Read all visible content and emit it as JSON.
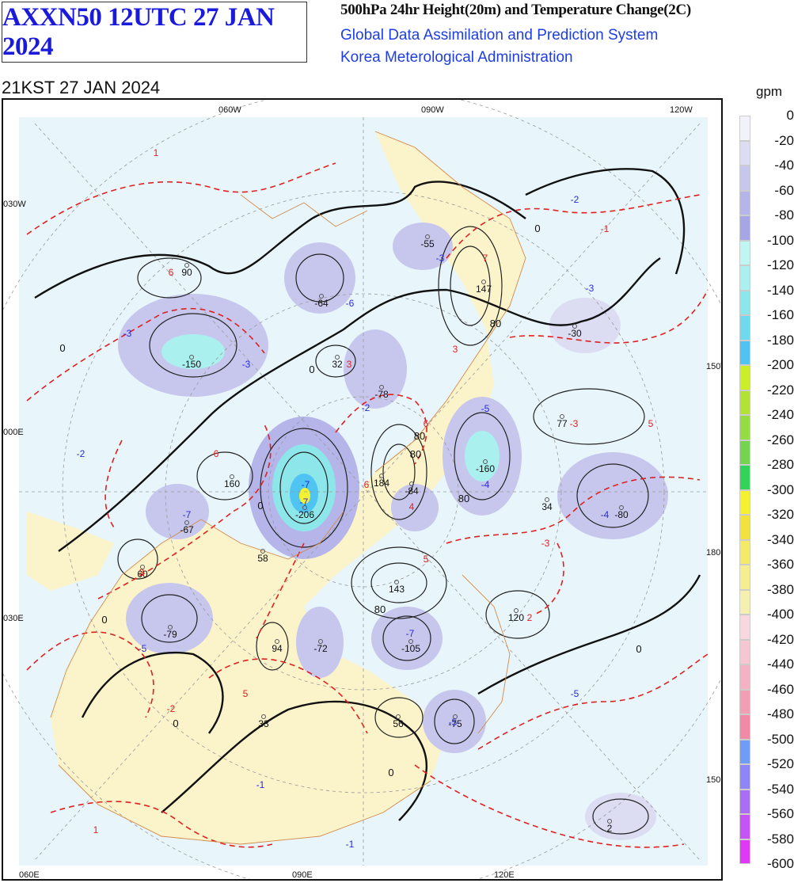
{
  "header": {
    "product_code": "AXXN50 12UTC 27 JAN 2024",
    "chart_title": "500hPa 24hr Height(20m) and Temperature Change(2C)",
    "system_name": "Global Data Assimilation and Prediction System",
    "agency": "Korea Meterological Administration",
    "valid_time": "21KST 27 JAN 2024"
  },
  "map": {
    "top_lon_labels": [
      "060W",
      "090W",
      "120W"
    ],
    "bottom_lon_labels": [
      "060E",
      "090E",
      "120E"
    ],
    "left_lon_labels": [
      "030W",
      "000E",
      "030E"
    ],
    "right_lon_labels": [
      "150W",
      "180E",
      "150E"
    ],
    "height_change_centers": [
      "90",
      "-64",
      "-55",
      "147",
      "-150",
      "32",
      "-78",
      "-30",
      "77",
      "-160",
      "160",
      "184",
      "-206",
      "-84",
      "-67",
      "-80",
      "34",
      "60",
      "58",
      "143",
      "120",
      "-79",
      "94",
      "-72",
      "-105",
      "33",
      "56",
      "-75",
      "2"
    ],
    "temp_change_centers": [
      "1",
      "6",
      "-3",
      "-6",
      "-3",
      "-3",
      "3",
      "-2",
      "-2",
      "6",
      "5",
      "-2",
      "-3",
      "-5",
      "-1",
      "-3",
      "7",
      "6",
      "-4",
      "-7",
      "6",
      "3",
      "-7",
      "-4",
      "5",
      "4",
      "-7",
      "2",
      "-5",
      "5",
      "-2",
      "-5",
      "-7",
      "-5",
      "-3",
      "-1",
      "1",
      "-1",
      "3"
    ],
    "contour_labels": [
      "0",
      "0",
      "0",
      "0",
      "0",
      "0",
      "80",
      "80",
      "80",
      "80",
      "80",
      "0",
      "0"
    ]
  },
  "colorbar": {
    "unit": "gpm",
    "labels": [
      "0",
      "-20",
      "-40",
      "-60",
      "-80",
      "-100",
      "-120",
      "-140",
      "-160",
      "-180",
      "-200",
      "-220",
      "-240",
      "-260",
      "-280",
      "-300",
      "-320",
      "-340",
      "-360",
      "-380",
      "-400",
      "-420",
      "-440",
      "-460",
      "-480",
      "-500",
      "-520",
      "-540",
      "-560",
      "-580",
      "-600"
    ],
    "colors": [
      "#f2f2fb",
      "#dcdcf3",
      "#c7c7ee",
      "#b5b5ea",
      "#a6a6e6",
      "#c0f6f2",
      "#a9f0ee",
      "#8de6ea",
      "#6fd9ee",
      "#4fc3f2",
      "#ccee2a",
      "#b2e236",
      "#94dc42",
      "#74d450",
      "#33d25a",
      "#f4f230",
      "#f2e23e",
      "#f4ea6a",
      "#f5ee90",
      "#f5f0b0",
      "#f8d8e0",
      "#f6c6d2",
      "#f4b2c4",
      "#f29eb4",
      "#f08aa6",
      "#6e9cf6",
      "#8e86f6",
      "#aa6ef6",
      "#c454f6",
      "#de3af6"
    ]
  }
}
